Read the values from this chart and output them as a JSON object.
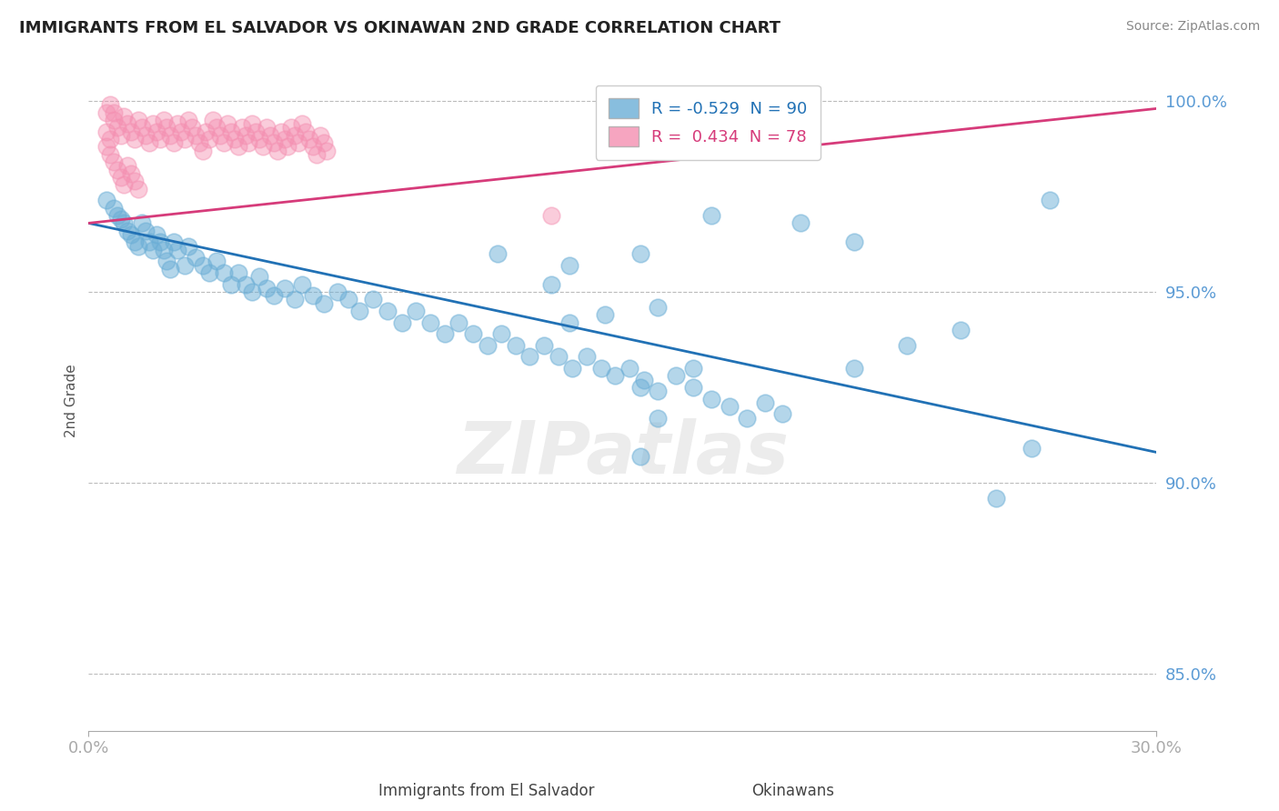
{
  "title": "IMMIGRANTS FROM EL SALVADOR VS OKINAWAN 2ND GRADE CORRELATION CHART",
  "source": "Source: ZipAtlas.com",
  "xlabel_left": "Immigrants from El Salvador",
  "xlabel_right": "Okinawans",
  "ylabel": "2nd Grade",
  "xlim": [
    0.0,
    0.3
  ],
  "ylim": [
    0.835,
    1.008
  ],
  "yticks": [
    0.85,
    0.9,
    0.95,
    1.0
  ],
  "ytick_labels": [
    "85.0%",
    "90.0%",
    "95.0%",
    "100.0%"
  ],
  "xticks": [
    0.0,
    0.3
  ],
  "xtick_labels": [
    "0.0%",
    "30.0%"
  ],
  "blue_R": -0.529,
  "blue_N": 90,
  "pink_R": 0.434,
  "pink_N": 78,
  "blue_color": "#6baed6",
  "pink_color": "#f48fb1",
  "blue_line_color": "#2171b5",
  "pink_line_color": "#d63b7a",
  "grid_color": "#bbbbbb",
  "title_color": "#222222",
  "axis_color": "#5b9bd5",
  "watermark": "ZIPatlas",
  "blue_line_y0": 0.968,
  "blue_line_y1": 0.908,
  "pink_line_y0": 0.968,
  "pink_line_y1": 0.998,
  "blue_scatter_x": [
    0.005,
    0.007,
    0.008,
    0.009,
    0.01,
    0.011,
    0.012,
    0.013,
    0.014,
    0.015,
    0.016,
    0.017,
    0.018,
    0.019,
    0.02,
    0.021,
    0.022,
    0.023,
    0.024,
    0.025,
    0.027,
    0.028,
    0.03,
    0.032,
    0.034,
    0.036,
    0.038,
    0.04,
    0.042,
    0.044,
    0.046,
    0.048,
    0.05,
    0.052,
    0.055,
    0.058,
    0.06,
    0.063,
    0.066,
    0.07,
    0.073,
    0.076,
    0.08,
    0.084,
    0.088,
    0.092,
    0.096,
    0.1,
    0.104,
    0.108,
    0.112,
    0.116,
    0.12,
    0.124,
    0.128,
    0.132,
    0.136,
    0.14,
    0.144,
    0.148,
    0.152,
    0.156,
    0.16,
    0.165,
    0.17,
    0.175,
    0.18,
    0.185,
    0.19,
    0.195,
    0.115,
    0.135,
    0.155,
    0.175,
    0.155,
    0.13,
    0.16,
    0.17,
    0.135,
    0.145,
    0.2,
    0.215,
    0.23,
    0.245,
    0.155,
    0.16,
    0.215,
    0.27,
    0.255,
    0.265
  ],
  "blue_scatter_y": [
    0.974,
    0.972,
    0.97,
    0.969,
    0.968,
    0.966,
    0.965,
    0.963,
    0.962,
    0.968,
    0.966,
    0.963,
    0.961,
    0.965,
    0.963,
    0.961,
    0.958,
    0.956,
    0.963,
    0.961,
    0.957,
    0.962,
    0.959,
    0.957,
    0.955,
    0.958,
    0.955,
    0.952,
    0.955,
    0.952,
    0.95,
    0.954,
    0.951,
    0.949,
    0.951,
    0.948,
    0.952,
    0.949,
    0.947,
    0.95,
    0.948,
    0.945,
    0.948,
    0.945,
    0.942,
    0.945,
    0.942,
    0.939,
    0.942,
    0.939,
    0.936,
    0.939,
    0.936,
    0.933,
    0.936,
    0.933,
    0.93,
    0.933,
    0.93,
    0.928,
    0.93,
    0.927,
    0.924,
    0.928,
    0.925,
    0.922,
    0.92,
    0.917,
    0.921,
    0.918,
    0.96,
    0.942,
    0.96,
    0.97,
    0.925,
    0.952,
    0.946,
    0.93,
    0.957,
    0.944,
    0.968,
    0.963,
    0.936,
    0.94,
    0.907,
    0.917,
    0.93,
    0.974,
    0.896,
    0.909
  ],
  "pink_scatter_x": [
    0.005,
    0.006,
    0.007,
    0.008,
    0.009,
    0.01,
    0.011,
    0.012,
    0.013,
    0.014,
    0.015,
    0.016,
    0.017,
    0.018,
    0.019,
    0.02,
    0.021,
    0.022,
    0.023,
    0.024,
    0.025,
    0.026,
    0.027,
    0.028,
    0.029,
    0.03,
    0.031,
    0.032,
    0.033,
    0.034,
    0.035,
    0.036,
    0.037,
    0.038,
    0.039,
    0.04,
    0.041,
    0.042,
    0.043,
    0.044,
    0.045,
    0.046,
    0.047,
    0.048,
    0.049,
    0.05,
    0.051,
    0.052,
    0.053,
    0.054,
    0.055,
    0.056,
    0.057,
    0.058,
    0.059,
    0.06,
    0.061,
    0.062,
    0.063,
    0.064,
    0.065,
    0.066,
    0.067,
    0.005,
    0.006,
    0.007,
    0.008,
    0.009,
    0.01,
    0.011,
    0.012,
    0.013,
    0.014,
    0.005,
    0.006,
    0.007,
    0.2,
    0.13
  ],
  "pink_scatter_y": [
    0.992,
    0.99,
    0.995,
    0.993,
    0.991,
    0.996,
    0.994,
    0.992,
    0.99,
    0.995,
    0.993,
    0.991,
    0.989,
    0.994,
    0.992,
    0.99,
    0.995,
    0.993,
    0.991,
    0.989,
    0.994,
    0.992,
    0.99,
    0.995,
    0.993,
    0.991,
    0.989,
    0.987,
    0.992,
    0.99,
    0.995,
    0.993,
    0.991,
    0.989,
    0.994,
    0.992,
    0.99,
    0.988,
    0.993,
    0.991,
    0.989,
    0.994,
    0.992,
    0.99,
    0.988,
    0.993,
    0.991,
    0.989,
    0.987,
    0.992,
    0.99,
    0.988,
    0.993,
    0.991,
    0.989,
    0.994,
    0.992,
    0.99,
    0.988,
    0.986,
    0.991,
    0.989,
    0.987,
    0.988,
    0.986,
    0.984,
    0.982,
    0.98,
    0.978,
    0.983,
    0.981,
    0.979,
    0.977,
    0.997,
    0.999,
    0.997,
    0.998,
    0.97
  ]
}
